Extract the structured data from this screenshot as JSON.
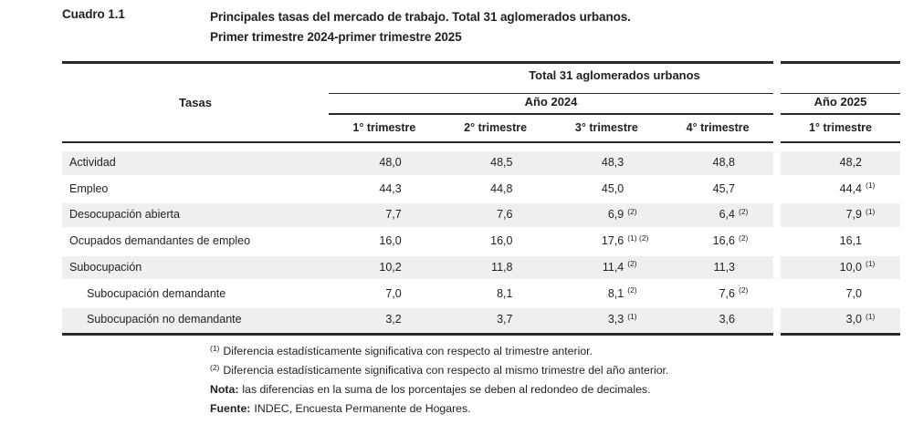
{
  "caption": {
    "number": "Cuadro 1.1",
    "title_line1": "Principales tasas del mercado de trabajo. Total 31 aglomerados urbanos.",
    "title_line2": "Primer trimestre 2024-primer trimestre 2025"
  },
  "table": {
    "corner_header": "Tasas",
    "span_header": "Total 31 aglomerados urbanos",
    "year_2024_label": "Año 2024",
    "year_2025_label": "Año 2025",
    "quarter_headers": [
      "1° trimestre",
      "2° trimestre",
      "3° trimestre",
      "4° trimestre",
      "1° trimestre"
    ],
    "rows": [
      {
        "label": "Actividad",
        "indent": false,
        "values": [
          {
            "v": "48,0",
            "sup": ""
          },
          {
            "v": "48,5",
            "sup": ""
          },
          {
            "v": "48,3",
            "sup": ""
          },
          {
            "v": "48,8",
            "sup": ""
          },
          {
            "v": "48,2",
            "sup": ""
          }
        ]
      },
      {
        "label": "Empleo",
        "indent": false,
        "values": [
          {
            "v": "44,3",
            "sup": ""
          },
          {
            "v": "44,8",
            "sup": ""
          },
          {
            "v": "45,0",
            "sup": ""
          },
          {
            "v": "45,7",
            "sup": ""
          },
          {
            "v": "44,4",
            "sup": "(1)"
          }
        ]
      },
      {
        "label": "Desocupación abierta",
        "indent": false,
        "values": [
          {
            "v": "7,7",
            "sup": ""
          },
          {
            "v": "7,6",
            "sup": ""
          },
          {
            "v": "6,9",
            "sup": "(2)"
          },
          {
            "v": "6,4",
            "sup": "(2)"
          },
          {
            "v": "7,9",
            "sup": "(1)"
          }
        ]
      },
      {
        "label": "Ocupados demandantes de empleo",
        "indent": false,
        "values": [
          {
            "v": "16,0",
            "sup": ""
          },
          {
            "v": "16,0",
            "sup": ""
          },
          {
            "v": "17,6",
            "sup": "(1) (2)"
          },
          {
            "v": "16,6",
            "sup": "(2)"
          },
          {
            "v": "16,1",
            "sup": ""
          }
        ]
      },
      {
        "label": "Subocupación",
        "indent": false,
        "values": [
          {
            "v": "10,2",
            "sup": ""
          },
          {
            "v": "11,8",
            "sup": ""
          },
          {
            "v": "11,4",
            "sup": "(2)"
          },
          {
            "v": "11,3",
            "sup": ""
          },
          {
            "v": "10,0",
            "sup": "(1)"
          }
        ]
      },
      {
        "label": "Subocupación demandante",
        "indent": true,
        "values": [
          {
            "v": "7,0",
            "sup": ""
          },
          {
            "v": "8,1",
            "sup": ""
          },
          {
            "v": "8,1",
            "sup": "(2)"
          },
          {
            "v": "7,6",
            "sup": "(2)"
          },
          {
            "v": "7,0",
            "sup": ""
          }
        ]
      },
      {
        "label": "Subocupación no demandante",
        "indent": true,
        "values": [
          {
            "v": "3,2",
            "sup": ""
          },
          {
            "v": "3,7",
            "sup": ""
          },
          {
            "v": "3,3",
            "sup": "(1)"
          },
          {
            "v": "3,6",
            "sup": ""
          },
          {
            "v": "3,0",
            "sup": "(1)"
          }
        ]
      }
    ]
  },
  "footnotes": [
    {
      "marker": "(1)",
      "bold": "",
      "text": "Diferencia estadísticamente significativa con respecto al trimestre anterior."
    },
    {
      "marker": "(2)",
      "bold": "",
      "text": "Diferencia estadísticamente significativa con respecto al mismo trimestre del año anterior."
    },
    {
      "marker": "",
      "bold": "Nota:",
      "text": "las diferencias en la suma de los porcentajes se deben al redondeo de decimales."
    },
    {
      "marker": "",
      "bold": "Fuente:",
      "text": "INDEC, Encuesta Permanente de Hogares."
    }
  ],
  "colors": {
    "text": "#231f20",
    "band": "#efeef0",
    "rule": "#2b2728"
  }
}
